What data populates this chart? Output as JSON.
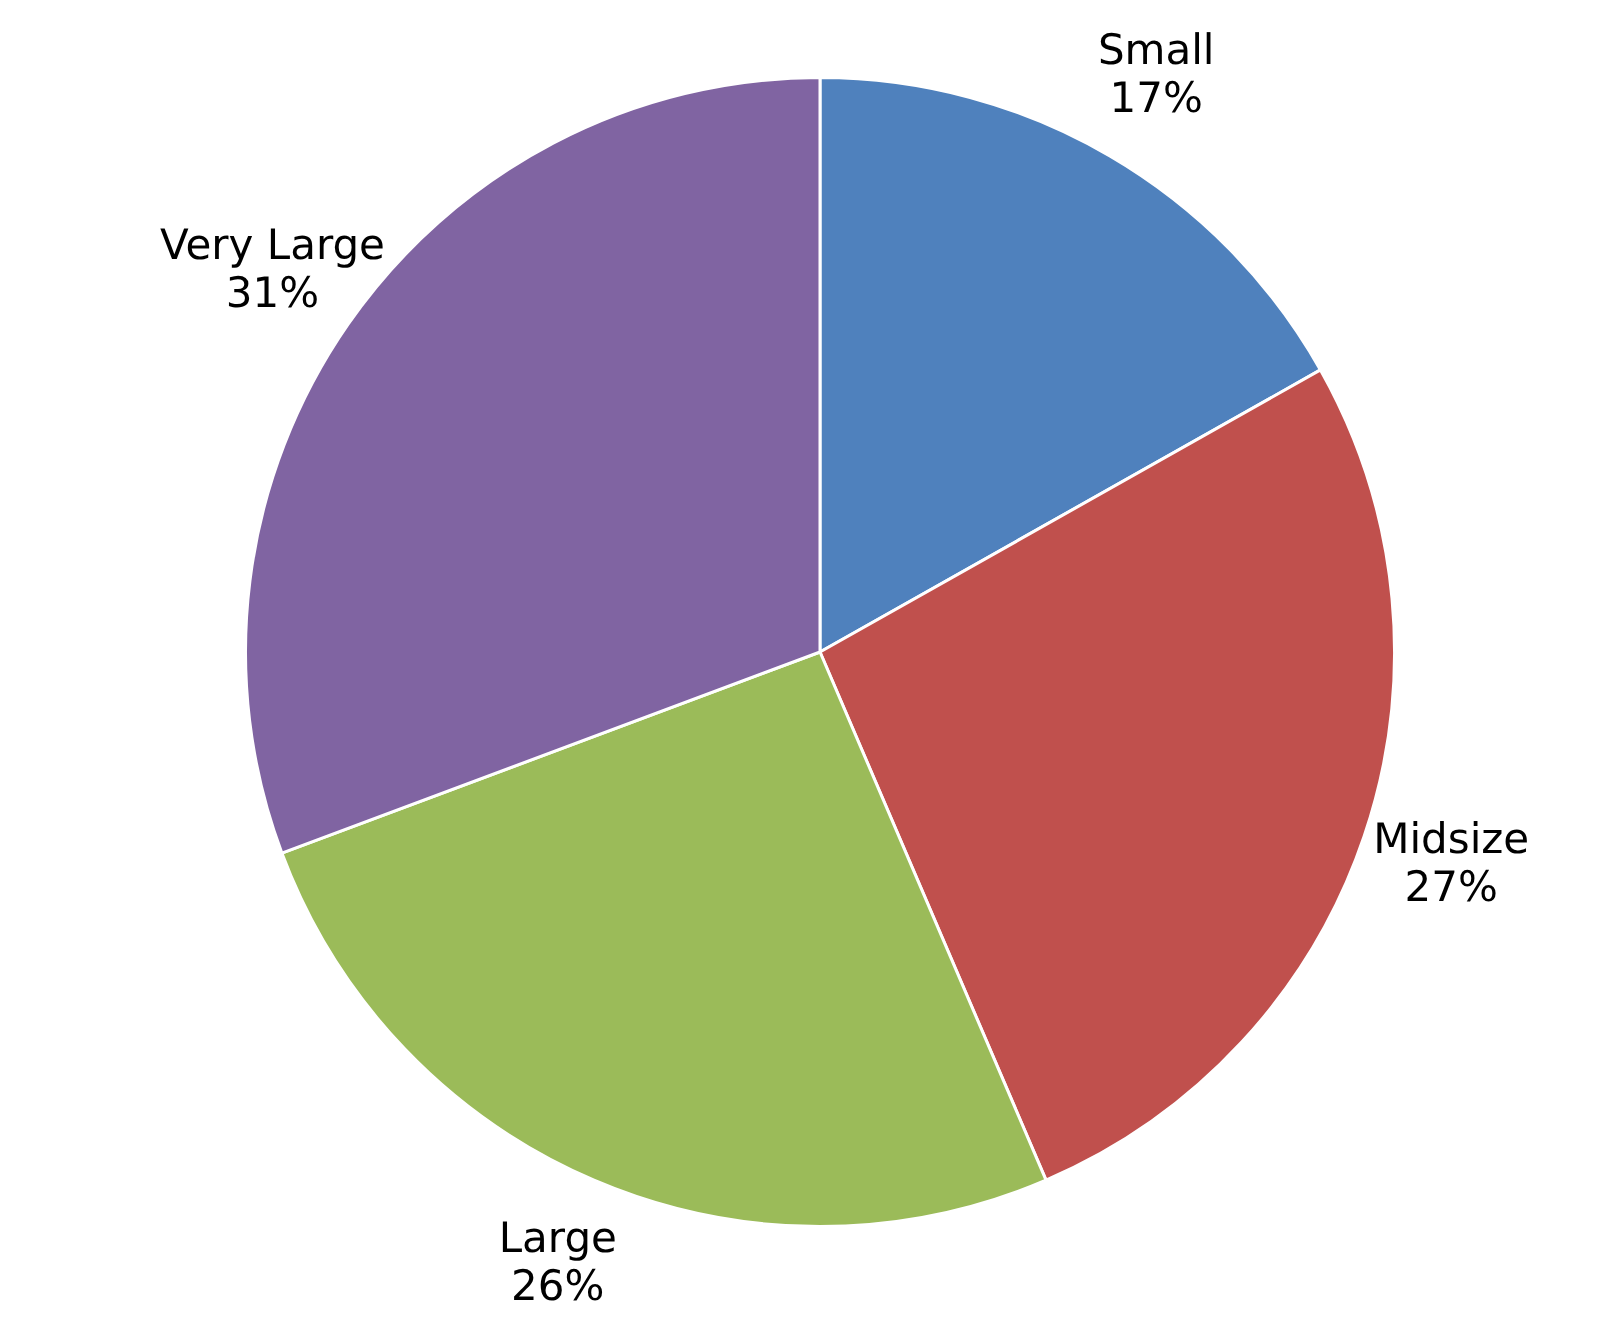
{
  "chart_data": {
    "type": "pie",
    "categories": [
      "Small",
      "Midsize",
      "Large",
      "Very Large"
    ],
    "values": [
      17,
      27,
      26,
      31
    ],
    "value_labels": [
      "17%",
      "27%",
      "26%",
      "31%"
    ],
    "colors": [
      "#4f81bd",
      "#c0504d",
      "#9bbb59",
      "#8064a2"
    ]
  }
}
